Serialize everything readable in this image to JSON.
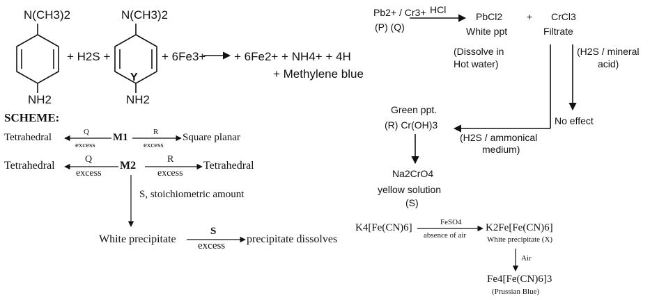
{
  "reaction_y": {
    "amine_top_1": "N(CH3)2",
    "amine_bottom_1": "NH2",
    "plus_h2s": "+ H2S +",
    "amine_top_2": "N(CH3)2",
    "amine_bottom_2": "NH2",
    "label_y": "Y",
    "plus_fe3": "+ 6Fe3+",
    "products": "+ 6Fe2+ + NH4+ + 4H",
    "products_2": "+ Methylene blue"
  },
  "scheme": {
    "heading": "SCHEME:",
    "row1": {
      "left": "Tetrahedral",
      "left_arrow_top": "Q",
      "left_arrow_bottom": "excess",
      "center": "M1",
      "right_arrow_top": "R",
      "right_arrow_bottom": "excess",
      "right": "Square planar"
    },
    "row2": {
      "left": "Tetrahedral",
      "left_arrow_top": "Q",
      "left_arrow_bottom": "excess",
      "center": "M2",
      "right_arrow_top": "R",
      "right_arrow_bottom": "excess",
      "right": "Tetrahedral"
    },
    "down_label": "S, stoichiometric amount",
    "row3": {
      "left": "White precipitate",
      "arrow_top": "S",
      "arrow_bottom": "excess",
      "right": "precipitate dissolves"
    }
  },
  "pb_cr": {
    "reactants": "Pb2+ / Cr3+",
    "reactant_labels": "(P)   (Q)",
    "reagent": "HCl",
    "pbcl2": "PbCl2",
    "plus": "+",
    "crcl3": "CrCl3",
    "white_ppt": "White ppt",
    "filtrate": "Filtrate",
    "dissolve_1": "(Dissolve in",
    "dissolve_2": "Hot water)",
    "h2s_mineral_1": "(H2S / mineral",
    "h2s_mineral_2": "acid)",
    "no_effect": "No effect",
    "green_ppt": "Green ppt.",
    "cr_oh3": "(R) Cr(OH)3",
    "h2s_ammonical_1": "(H2S / ammonical",
    "h2s_ammonical_2": "medium)",
    "na2cro4": "Na2CrO4",
    "yellow_solution": "yellow solution",
    "label_s": "(S)"
  },
  "prussian": {
    "k4": "K4[Fe(CN)6]",
    "feso4": "FeSO4",
    "absence_air": "absence of air",
    "k2fe": "K2Fe[Fe(CN)6]",
    "white_ppt_x": "White precipitate (X)",
    "air": "Air",
    "fe4": "Fe4[Fe(CN)6]3",
    "prussian_blue": "(Prussian Blue)"
  }
}
